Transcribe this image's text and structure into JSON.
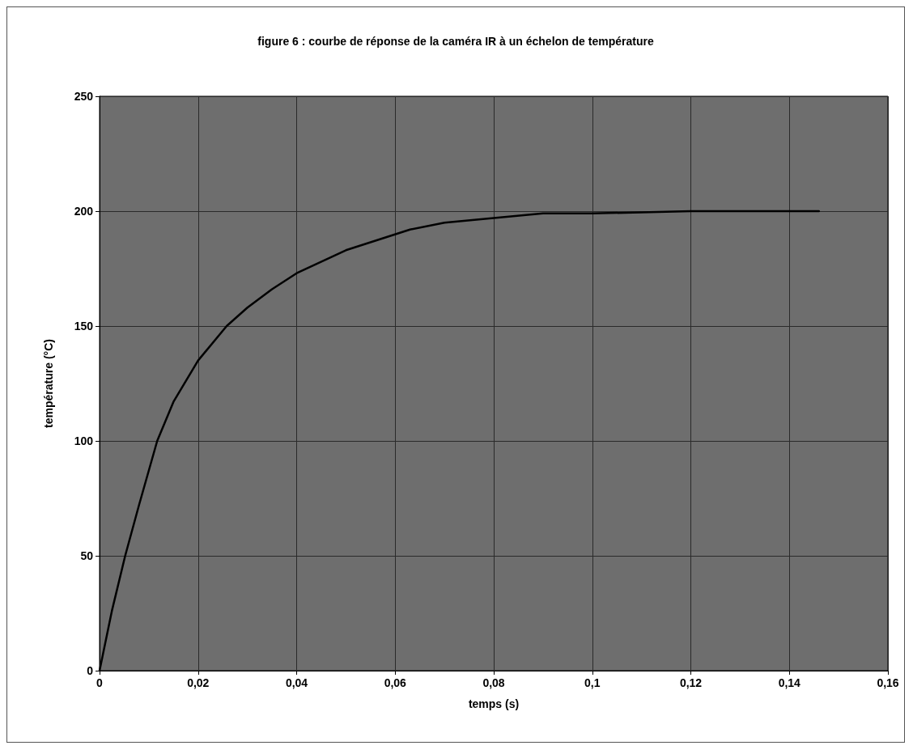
{
  "chart_data": {
    "type": "line",
    "title": "figure 6 : courbe de réponse de la caméra IR à un échelon de température",
    "xlabel": "temps (s)",
    "ylabel": "température (°C)",
    "x": [
      0,
      0.0025,
      0.0052,
      0.008,
      0.0117,
      0.015,
      0.02,
      0.0258,
      0.03,
      0.035,
      0.04,
      0.05,
      0.063,
      0.07,
      0.08,
      0.09,
      0.1,
      0.12,
      0.146
    ],
    "series": [
      {
        "color": "#000000",
        "values": [
          0,
          26,
          50,
          72,
          100,
          117,
          135,
          150,
          158,
          166,
          173,
          183,
          192,
          195,
          197,
          199,
          199,
          200,
          200
        ]
      }
    ],
    "xlim": [
      0,
      0.16
    ],
    "xticks": [
      0,
      {
        "value": 0.02,
        "label": "0,02"
      },
      {
        "value": 0.04,
        "label": "0,04"
      },
      {
        "value": 0.06,
        "label": "0,06"
      },
      {
        "value": 0.08,
        "label": "0,08"
      },
      {
        "value": 0.1,
        "label": "0,1"
      },
      {
        "value": 0.12,
        "label": "0,12"
      },
      {
        "value": 0.14,
        "label": "0,14"
      },
      {
        "value": 0.16,
        "label": "0,16"
      }
    ],
    "ylim": [
      0,
      250
    ],
    "yticks": [
      0,
      50,
      100,
      150,
      200,
      250
    ],
    "grid": true,
    "marker": "none",
    "line_style": "solid"
  }
}
